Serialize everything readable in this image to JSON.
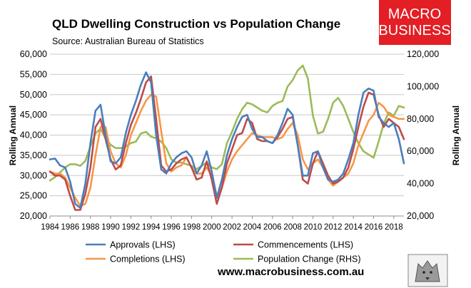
{
  "chart_data": {
    "type": "line",
    "title": "QLD Dwelling Construction vs Population Change",
    "subtitle": "Source: Australian Bureau of Statistics",
    "ylabel_left": "Rolling Annual",
    "ylabel_right": "Rolling Annual",
    "xlim": [
      1984,
      2019
    ],
    "ylim_left": [
      20000,
      60000
    ],
    "ylim_right": [
      20000,
      120000
    ],
    "yticks_left": [
      "20,000",
      "25,000",
      "30,000",
      "35,000",
      "40,000",
      "45,000",
      "50,000",
      "55,000",
      "60,000"
    ],
    "yticks_right": [
      "20,000",
      "40,000",
      "60,000",
      "80,000",
      "100,000",
      "120,000"
    ],
    "x_tick_labels": [
      "1984",
      "1986",
      "1988",
      "1990",
      "1992",
      "1994",
      "1996",
      "1998",
      "2000",
      "2002",
      "2004",
      "2006",
      "2008",
      "2010",
      "2012",
      "2014",
      "2016",
      "2018"
    ],
    "series": [
      {
        "name": "Approvals (LHS)",
        "axis": "left",
        "color": "#4a7ebb",
        "x": [
          1984,
          1984.5,
          1985,
          1985.5,
          1986,
          1986.5,
          1987,
          1987.5,
          1988,
          1988.5,
          1989,
          1989.5,
          1990,
          1990.5,
          1991,
          1991.5,
          1992,
          1992.5,
          1993,
          1993.5,
          1994,
          1994.5,
          1995,
          1995.5,
          1996,
          1996.5,
          1997,
          1997.5,
          1998,
          1998.5,
          1999,
          1999.5,
          2000,
          2000.5,
          2001,
          2001.5,
          2002,
          2002.5,
          2003,
          2003.5,
          2004,
          2004.5,
          2005,
          2005.5,
          2006,
          2006.5,
          2007,
          2007.5,
          2008,
          2008.5,
          2009,
          2009.5,
          2010,
          2010.5,
          2011,
          2011.5,
          2012,
          2012.5,
          2013,
          2013.5,
          2014,
          2014.5,
          2015,
          2015.5,
          2016,
          2016.5,
          2017,
          2017.5,
          2018,
          2018.5,
          2019
        ],
        "y": [
          34000,
          34200,
          32500,
          32000,
          28500,
          23000,
          22000,
          28000,
          38000,
          46000,
          47500,
          40000,
          33500,
          33000,
          34500,
          40500,
          45000,
          48500,
          52500,
          55500,
          53000,
          40000,
          31500,
          30500,
          33000,
          34500,
          35500,
          36000,
          34500,
          30500,
          32500,
          36000,
          31000,
          24500,
          29000,
          35000,
          39000,
          42000,
          44500,
          45000,
          41500,
          39500,
          39500,
          38500,
          38000,
          40000,
          43000,
          46500,
          45000,
          37500,
          30000,
          30000,
          35500,
          36000,
          32000,
          29000,
          28500,
          29000,
          30500,
          34000,
          38000,
          45000,
          50500,
          51500,
          51000,
          44500,
          43000,
          42000,
          43000,
          39000,
          33000
        ]
      },
      {
        "name": "Commencements (LHS)",
        "axis": "left",
        "color": "#be4b48",
        "x": [
          1984,
          1984.5,
          1985,
          1985.5,
          1986,
          1986.5,
          1987,
          1987.5,
          1988,
          1988.5,
          1989,
          1989.5,
          1990,
          1990.5,
          1991,
          1991.5,
          1992,
          1992.5,
          1993,
          1993.5,
          1994,
          1994.5,
          1995,
          1995.5,
          1996,
          1996.5,
          1997,
          1997.5,
          1998,
          1998.5,
          1999,
          1999.5,
          2000,
          2000.5,
          2001,
          2001.5,
          2002,
          2002.5,
          2003,
          2003.5,
          2004,
          2004.5,
          2005,
          2005.5,
          2006,
          2006.5,
          2007,
          2007.5,
          2008,
          2008.5,
          2009,
          2009.5,
          2010,
          2010.5,
          2011,
          2011.5,
          2012,
          2012.5,
          2013,
          2013.5,
          2014,
          2014.5,
          2015,
          2015.5,
          2016,
          2016.5,
          2017,
          2017.5,
          2018,
          2018.5,
          2019
        ],
        "y": [
          31000,
          30000,
          30000,
          29000,
          25000,
          21500,
          21500,
          25500,
          32000,
          42000,
          44000,
          39000,
          34000,
          31500,
          32500,
          38000,
          42500,
          45500,
          49000,
          53000,
          54500,
          44000,
          32500,
          31000,
          31500,
          33000,
          34000,
          34500,
          32000,
          29000,
          29500,
          33500,
          29000,
          23000,
          27000,
          33000,
          36500,
          40000,
          40500,
          44000,
          43000,
          39000,
          38500,
          38500,
          38000,
          39500,
          41500,
          44000,
          44500,
          37500,
          29000,
          28000,
          33000,
          36000,
          33000,
          30000,
          28000,
          28500,
          29500,
          32000,
          36500,
          42000,
          47000,
          50500,
          50000,
          45000,
          42000,
          44000,
          43000,
          42000,
          39000
        ]
      },
      {
        "name": "Completions (LHS)",
        "axis": "left",
        "color": "#f79646",
        "x": [
          1984,
          1984.5,
          1985,
          1985.5,
          1986,
          1986.5,
          1987,
          1987.5,
          1988,
          1988.5,
          1989,
          1989.5,
          1990,
          1990.5,
          1991,
          1991.5,
          1992,
          1992.5,
          1993,
          1993.5,
          1994,
          1994.5,
          1995,
          1995.5,
          1996,
          1996.5,
          1997,
          1997.5,
          1998,
          1998.5,
          1999,
          1999.5,
          2000,
          2000.5,
          2001,
          2001.5,
          2002,
          2002.5,
          2003,
          2003.5,
          2004,
          2004.5,
          2005,
          2005.5,
          2006,
          2006.5,
          2007,
          2007.5,
          2008,
          2008.5,
          2009,
          2009.5,
          2010,
          2010.5,
          2011,
          2011.5,
          2012,
          2012.5,
          2013,
          2013.5,
          2014,
          2014.5,
          2015,
          2015.5,
          2016,
          2016.5,
          2017,
          2017.5,
          2018,
          2018.5,
          2019
        ],
        "y": [
          31000,
          30500,
          30500,
          29500,
          27000,
          24500,
          22500,
          23000,
          27000,
          35000,
          42000,
          42000,
          36000,
          33000,
          32000,
          35000,
          40000,
          43000,
          46000,
          48500,
          50000,
          49500,
          41000,
          33000,
          31000,
          32000,
          32500,
          34500,
          32000,
          30500,
          30500,
          32000,
          30000,
          25000,
          27000,
          31000,
          34000,
          36000,
          37500,
          39000,
          40500,
          40000,
          39500,
          39500,
          39500,
          39000,
          39500,
          41500,
          43000,
          40000,
          34000,
          31500,
          33000,
          34000,
          32000,
          29000,
          27500,
          28500,
          29500,
          30500,
          33000,
          37500,
          40500,
          43500,
          45000,
          48000,
          47000,
          45000,
          44500,
          44000,
          44000
        ]
      },
      {
        "name": "Population Change (RHS)",
        "axis": "right",
        "color": "#9bbb59",
        "x": [
          1984,
          1984.5,
          1985,
          1985.5,
          1986,
          1986.5,
          1987,
          1987.5,
          1988,
          1988.5,
          1989,
          1989.5,
          1990,
          1990.5,
          1991,
          1991.5,
          1992,
          1992.5,
          1993,
          1993.5,
          1994,
          1994.5,
          1995,
          1995.5,
          1996,
          1996.5,
          1997,
          1997.5,
          1998,
          1998.5,
          1999,
          1999.5,
          2000,
          2000.5,
          2001,
          2001.5,
          2002,
          2002.5,
          2003,
          2003.5,
          2004,
          2004.5,
          2005,
          2005.5,
          2006,
          2006.5,
          2007,
          2007.5,
          2008,
          2008.5,
          2009,
          2009.5,
          2010,
          2010.5,
          2011,
          2011.5,
          2012,
          2012.5,
          2013,
          2013.5,
          2014,
          2014.5,
          2015,
          2015.5,
          2016,
          2016.5,
          2017,
          2017.5,
          2018,
          2018.5,
          2019
        ],
        "y": [
          42000,
          44000,
          47000,
          50000,
          52000,
          52000,
          51000,
          54000,
          63000,
          71000,
          74000,
          68000,
          64000,
          62000,
          62000,
          63000,
          65000,
          66000,
          71000,
          72000,
          69000,
          68000,
          66000,
          62000,
          55000,
          53000,
          53000,
          52000,
          51000,
          49000,
          51000,
          53000,
          50000,
          49000,
          52000,
          65000,
          72000,
          80000,
          86000,
          90000,
          89000,
          87000,
          85000,
          84000,
          88000,
          90000,
          91000,
          100000,
          104000,
          110000,
          113000,
          105000,
          82000,
          71000,
          72000,
          80000,
          90000,
          93000,
          88000,
          80000,
          72000,
          65000,
          60000,
          58000,
          56000,
          66000,
          77000,
          84000,
          82000,
          88000,
          87000
        ]
      }
    ],
    "legend_position": "bottom",
    "source_url": "www.macrobusiness.com.au",
    "logo": {
      "line1": "MACRO",
      "line2": "BUSINESS",
      "bg_color": "#e31e24"
    }
  }
}
